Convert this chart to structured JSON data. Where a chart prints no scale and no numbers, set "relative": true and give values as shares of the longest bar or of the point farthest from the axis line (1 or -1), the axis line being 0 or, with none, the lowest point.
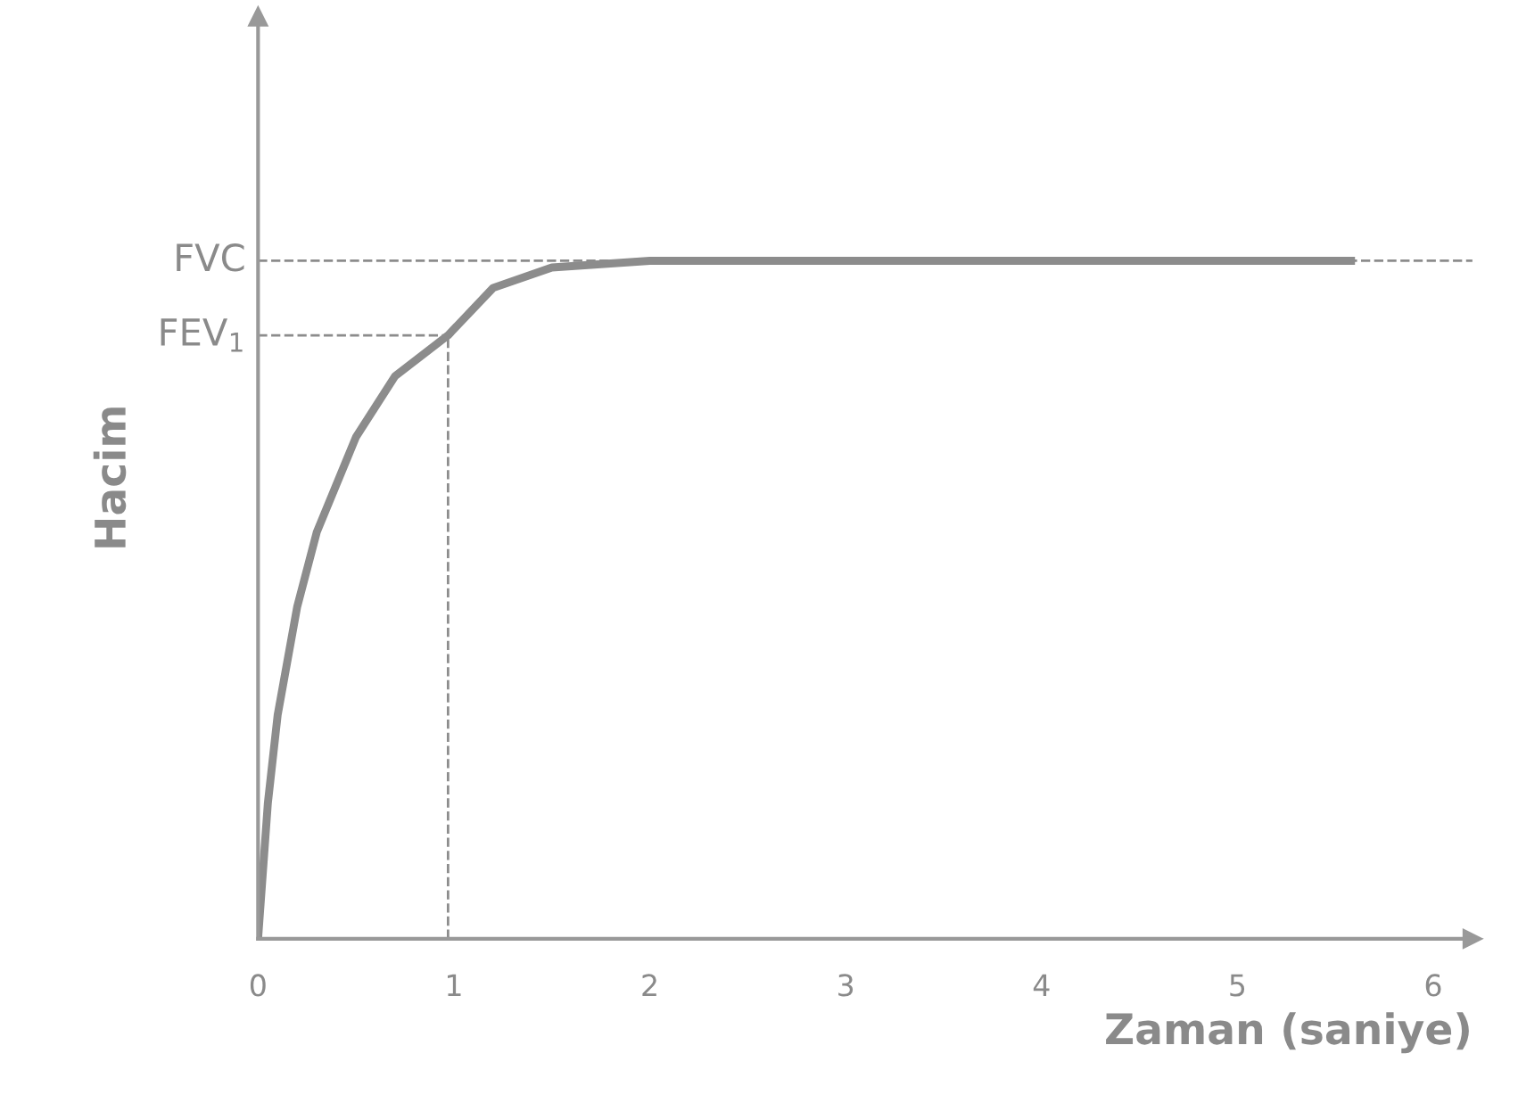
{
  "chart_data": {
    "type": "line",
    "xlabel": "Zaman (saniye)",
    "ylabel": "Hacim",
    "relative": true,
    "tick_labels": "x",
    "grid": false,
    "legend": false,
    "marker": "none",
    "line_style": "solid",
    "xlim": [
      0,
      6.2
    ],
    "xticks": [
      0,
      1,
      2,
      3,
      4,
      5,
      6
    ],
    "series": [
      {
        "color": "#8c8c8c",
        "x": [
          0,
          0.05,
          0.1,
          0.2,
          0.3,
          0.5,
          0.7,
          0.97,
          1.2,
          1.5,
          2,
          3,
          4,
          5,
          5.58
        ],
        "values": [
          0,
          0.2,
          0.33,
          0.49,
          0.6,
          0.74,
          0.83,
          0.89,
          0.96,
          0.99,
          1,
          1,
          1,
          1,
          1
        ]
      }
    ],
    "ref_lines": [
      {
        "axis": "y",
        "value": 1,
        "label": "FVC",
        "line_style": "dashed",
        "color": "#8c8c8c"
      },
      {
        "axis": "y",
        "value": 0.89,
        "label": "FEV$_{1}$",
        "line_style": "dashed",
        "color": "#8c8c8c"
      },
      {
        "axis": "x",
        "value": 0.97,
        "label": null,
        "line_style": "dashed",
        "color": "#8c8c8c"
      }
    ]
  }
}
